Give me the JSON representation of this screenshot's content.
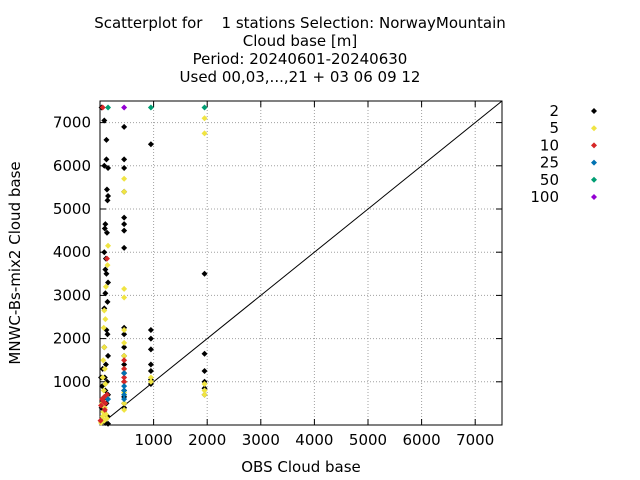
{
  "chart_data": {
    "type": "scatter",
    "title_lines": [
      "Scatterplot for    1 stations Selection: NorwayMountain",
      "Cloud base [m]",
      "Period: 20240601-20240630",
      "Used 00,03,...,21 + 03 06 09 12"
    ],
    "xlabel": "OBS Cloud base",
    "ylabel": "MNWC-Bs-mix2 Cloud base",
    "xlim": [
      0,
      7500
    ],
    "ylim": [
      0,
      7500
    ],
    "xticks": [
      1000,
      2000,
      3000,
      4000,
      5000,
      6000,
      7000
    ],
    "yticks": [
      1000,
      2000,
      3000,
      4000,
      5000,
      6000,
      7000
    ],
    "grid": true,
    "diagonal": true,
    "legend_position": "right",
    "series": [
      {
        "name": "2",
        "color": "#000000",
        "points": [
          [
            30,
            7350
          ],
          [
            80,
            7050
          ],
          [
            80,
            6000
          ],
          [
            120,
            6600
          ],
          [
            120,
            6150
          ],
          [
            150,
            5950
          ],
          [
            90,
            4550
          ],
          [
            100,
            4650
          ],
          [
            130,
            4450
          ],
          [
            140,
            5200
          ],
          [
            150,
            5300
          ],
          [
            130,
            5450
          ],
          [
            80,
            4000
          ],
          [
            100,
            3600
          ],
          [
            110,
            3850
          ],
          [
            120,
            3500
          ],
          [
            150,
            3300
          ],
          [
            100,
            3050
          ],
          [
            80,
            2700
          ],
          [
            120,
            2200
          ],
          [
            140,
            2100
          ],
          [
            80,
            1800
          ],
          [
            150,
            1600
          ],
          [
            110,
            1400
          ],
          [
            50,
            1300
          ],
          [
            90,
            1100
          ],
          [
            130,
            1000
          ],
          [
            40,
            900
          ],
          [
            100,
            800
          ],
          [
            150,
            700
          ],
          [
            60,
            600
          ],
          [
            120,
            500
          ],
          [
            30,
            400
          ],
          [
            80,
            300
          ],
          [
            140,
            200
          ],
          [
            50,
            100
          ],
          [
            100,
            50
          ],
          [
            150,
            30
          ],
          [
            20,
            1100
          ],
          [
            140,
            2850
          ],
          [
            450,
            6900
          ],
          [
            450,
            6150
          ],
          [
            450,
            5950
          ],
          [
            450,
            5400
          ],
          [
            450,
            4800
          ],
          [
            450,
            4650
          ],
          [
            450,
            4500
          ],
          [
            450,
            4100
          ],
          [
            450,
            2250
          ],
          [
            450,
            2100
          ],
          [
            450,
            1800
          ],
          [
            450,
            1600
          ],
          [
            450,
            1400
          ],
          [
            450,
            1200
          ],
          [
            450,
            1000
          ],
          [
            450,
            800
          ],
          [
            450,
            650
          ],
          [
            450,
            500
          ],
          [
            450,
            400
          ],
          [
            950,
            6500
          ],
          [
            950,
            2200
          ],
          [
            950,
            2000
          ],
          [
            950,
            1750
          ],
          [
            950,
            1400
          ],
          [
            950,
            1250
          ],
          [
            950,
            1050
          ],
          [
            950,
            950
          ],
          [
            1950,
            3500
          ],
          [
            1950,
            1650
          ],
          [
            1950,
            1250
          ],
          [
            1950,
            1000
          ],
          [
            1950,
            850
          ],
          [
            1950,
            700
          ]
        ]
      },
      {
        "name": "5",
        "color": "#f0e442",
        "points": [
          [
            80,
            2650
          ],
          [
            100,
            2450
          ],
          [
            70,
            2250
          ],
          [
            80,
            1800
          ],
          [
            60,
            1500
          ],
          [
            90,
            1300
          ],
          [
            50,
            1100
          ],
          [
            100,
            950
          ],
          [
            70,
            800
          ],
          [
            120,
            650
          ],
          [
            40,
            500
          ],
          [
            90,
            400
          ],
          [
            60,
            300
          ],
          [
            110,
            250
          ],
          [
            50,
            200
          ],
          [
            130,
            150
          ],
          [
            80,
            100
          ],
          [
            20,
            50
          ],
          [
            140,
            3700
          ],
          [
            150,
            4150
          ],
          [
            110,
            3200
          ],
          [
            450,
            5700
          ],
          [
            450,
            5400
          ],
          [
            450,
            3150
          ],
          [
            450,
            2950
          ],
          [
            450,
            2200
          ],
          [
            450,
            1900
          ],
          [
            450,
            1600
          ],
          [
            450,
            1300
          ],
          [
            450,
            1000
          ],
          [
            450,
            750
          ],
          [
            450,
            500
          ],
          [
            450,
            350
          ],
          [
            950,
            1100
          ],
          [
            950,
            1000
          ],
          [
            1950,
            7100
          ],
          [
            1950,
            6750
          ],
          [
            1950,
            950
          ],
          [
            1950,
            800
          ],
          [
            1950,
            700
          ]
        ]
      },
      {
        "name": "10",
        "color": "#d62728",
        "points": [
          [
            50,
            7350
          ],
          [
            130,
            3850
          ],
          [
            40,
            600
          ],
          [
            60,
            550
          ],
          [
            100,
            500
          ],
          [
            20,
            450
          ],
          [
            80,
            650
          ],
          [
            130,
            700
          ],
          [
            90,
            350
          ],
          [
            10,
            100
          ],
          [
            450,
            1500
          ],
          [
            450,
            1300
          ],
          [
            450,
            1100
          ],
          [
            450,
            1000
          ]
        ]
      },
      {
        "name": "25",
        "color": "#0072b2",
        "points": [
          [
            450,
            900
          ],
          [
            450,
            800
          ],
          [
            450,
            700
          ],
          [
            450,
            600
          ],
          [
            450,
            1200
          ],
          [
            150,
            600
          ]
        ]
      },
      {
        "name": "50",
        "color": "#009e73",
        "points": [
          [
            150,
            7350
          ],
          [
            950,
            7350
          ],
          [
            1950,
            7350
          ]
        ]
      },
      {
        "name": "100",
        "color": "#9400d3",
        "points": [
          [
            450,
            7350
          ]
        ]
      }
    ]
  }
}
